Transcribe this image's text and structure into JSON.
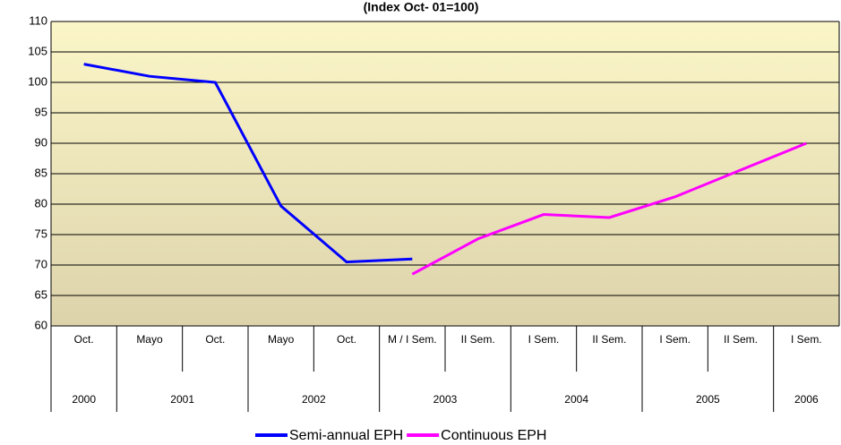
{
  "chart_data": {
    "type": "line",
    "title": "(Index Oct- 01=100)",
    "categories": [
      "Oct.",
      "Mayo",
      "Oct.",
      "Mayo",
      "Oct.",
      "M / I Sem.",
      "II Sem.",
      "I Sem.",
      "II Sem.",
      "I Sem.",
      "II Sem.",
      "I Sem."
    ],
    "year_categories": [
      "2000",
      "2001",
      null,
      "2002",
      null,
      "2003",
      null,
      "2004",
      null,
      "2005",
      null,
      "2006"
    ],
    "series": [
      {
        "name": "Semi-annual EPH",
        "color": "#0000ff",
        "values": [
          103,
          101,
          100,
          79.7,
          70.5,
          71,
          null,
          null,
          null,
          null,
          null,
          null
        ]
      },
      {
        "name": "Continuous EPH",
        "color": "#ff00ff",
        "values": [
          null,
          null,
          null,
          null,
          null,
          68.5,
          74.3,
          78.3,
          77.8,
          81.2,
          85.6,
          90
        ]
      }
    ],
    "ylim": [
      60,
      110
    ],
    "yticks": [
      60,
      65,
      70,
      75,
      80,
      85,
      90,
      95,
      100,
      105,
      110
    ],
    "grid": true,
    "legend": "bottom"
  }
}
